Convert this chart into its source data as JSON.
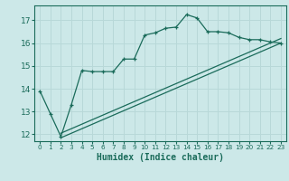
{
  "title": "",
  "xlabel": "Humidex (Indice chaleur)",
  "bg_color": "#cce8e8",
  "grid_color": "#b8d8d8",
  "line_color": "#1a6b5a",
  "xlim": [
    -0.5,
    23.5
  ],
  "ylim": [
    11.7,
    17.65
  ],
  "xticks": [
    0,
    1,
    2,
    3,
    4,
    5,
    6,
    7,
    8,
    9,
    10,
    11,
    12,
    13,
    14,
    15,
    16,
    17,
    18,
    19,
    20,
    21,
    22,
    23
  ],
  "yticks": [
    12,
    13,
    14,
    15,
    16,
    17
  ],
  "main_x": [
    0,
    1,
    2,
    3,
    4,
    5,
    6,
    7,
    8,
    9,
    10,
    11,
    12,
    13,
    14,
    15,
    16,
    17,
    18,
    19,
    20,
    21,
    22,
    23
  ],
  "main_y": [
    13.9,
    12.9,
    11.9,
    13.3,
    14.8,
    14.75,
    14.75,
    14.75,
    15.3,
    15.3,
    16.35,
    16.45,
    16.65,
    16.7,
    17.25,
    17.1,
    16.5,
    16.5,
    16.45,
    16.25,
    16.15,
    16.15,
    16.05,
    16.0
  ],
  "line1_x": [
    2,
    23
  ],
  "line1_y": [
    11.85,
    16.0
  ],
  "line2_x": [
    2,
    23
  ],
  "line2_y": [
    12.05,
    16.2
  ]
}
